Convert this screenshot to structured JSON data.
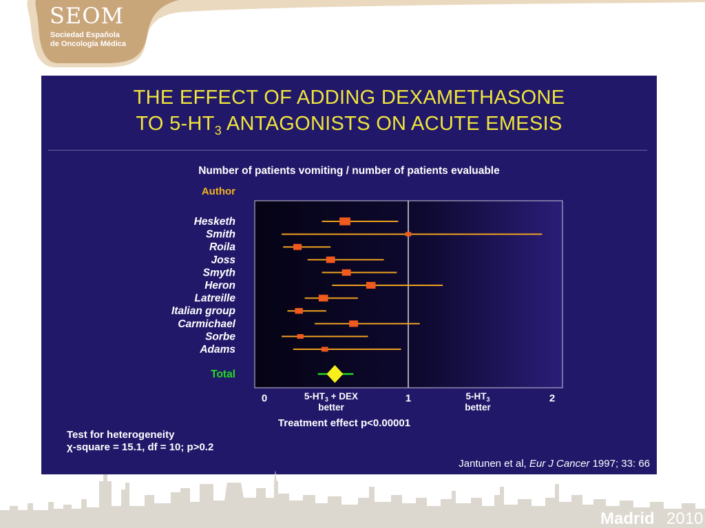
{
  "logo": {
    "name": "SEOM",
    "line1": "Sociedad Española",
    "line2": "de Oncología Médica"
  },
  "slide": {
    "title_line1": "THE EFFECT OF ADDING DEXAMETHASONE",
    "title_line2_pre": "TO 5-HT",
    "title_line2_sub": "3",
    "title_line2_post": " ANTAGONISTS ON ACUTE EMESIS",
    "heterogeneity_line1": "Test for heterogeneity",
    "heterogeneity_line2": "χ-square = 15.1, df = 10; p>0.2",
    "citation_pre": "Jantunen et al, ",
    "citation_journal": "Eur J Cancer",
    "citation_post": " 1997; 33: 66"
  },
  "colors": {
    "background": "#22186a",
    "title": "#f0e63c",
    "ci_line": "#f0a21e",
    "point": "#f05a1e",
    "total_diamond": "#f8f01e",
    "total_label": "#22dc22",
    "author_header": "#f0b41e"
  },
  "footer": {
    "city": "Madrid",
    "year": "2010"
  },
  "chart_data": {
    "type": "forest",
    "title": "Number of patients vomiting / number of patients evaluable",
    "row_header": "Author",
    "xlabel": "Treatment effect p<0.00001",
    "xlim": [
      0,
      2
    ],
    "x_ticks": [
      "0",
      "1",
      "2"
    ],
    "reference_line": 1,
    "left_label": {
      "main": "5-HT",
      "sub": "3",
      "rest": " + DEX",
      "line2": "better"
    },
    "right_label": {
      "main": "5-HT",
      "sub": "3",
      "rest": "",
      "line2": "better"
    },
    "studies": [
      {
        "author": "Hesketh",
        "estimate": 0.56,
        "lower": 0.4,
        "upper": 0.93,
        "weight": 3
      },
      {
        "author": "Smith",
        "estimate": 1.0,
        "lower": 0.12,
        "upper": 1.93,
        "weight": 1
      },
      {
        "author": "Roila",
        "estimate": 0.23,
        "lower": 0.13,
        "upper": 0.46,
        "weight": 2
      },
      {
        "author": "Joss",
        "estimate": 0.46,
        "lower": 0.3,
        "upper": 0.83,
        "weight": 2.2
      },
      {
        "author": "Smyth",
        "estimate": 0.57,
        "lower": 0.4,
        "upper": 0.92,
        "weight": 2.2
      },
      {
        "author": "Heron",
        "estimate": 0.74,
        "lower": 0.47,
        "upper": 1.24,
        "weight": 2.4
      },
      {
        "author": "Latreille",
        "estimate": 0.41,
        "lower": 0.28,
        "upper": 0.65,
        "weight": 2.4
      },
      {
        "author": "Italian group",
        "estimate": 0.24,
        "lower": 0.16,
        "upper": 0.43,
        "weight": 1.8
      },
      {
        "author": "Carmichael",
        "estimate": 0.62,
        "lower": 0.35,
        "upper": 1.08,
        "weight": 2.2
      },
      {
        "author": "Sorbe",
        "estimate": 0.25,
        "lower": 0.12,
        "upper": 0.72,
        "weight": 1.2
      },
      {
        "author": "Adams",
        "estimate": 0.42,
        "lower": 0.2,
        "upper": 0.95,
        "weight": 1.3
      }
    ],
    "total": {
      "label": "Total",
      "estimate": 0.49,
      "lower": 0.4,
      "upper": 0.59
    }
  }
}
